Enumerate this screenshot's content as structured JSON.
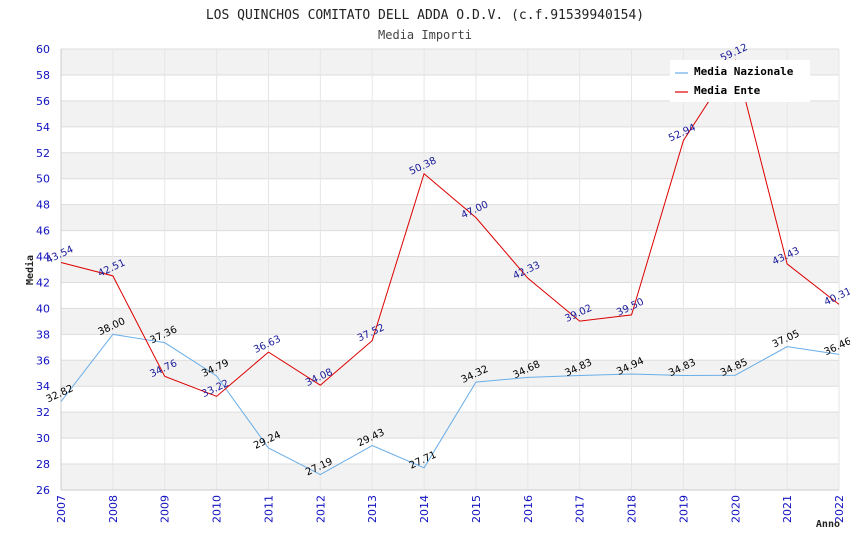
{
  "chart_data": {
    "type": "line",
    "title": "LOS QUINCHOS COMITATO DELL ADDA O.D.V. (c.f.91539940154)",
    "subtitle": "Media Importi",
    "xlabel": "Anno",
    "ylabel": "Media",
    "ylim": [
      26,
      60
    ],
    "yticks": [
      "26",
      "28",
      "30",
      "32",
      "34",
      "36",
      "38",
      "40",
      "42",
      "44",
      "46",
      "48",
      "50",
      "52",
      "54",
      "56",
      "58",
      "60"
    ],
    "categories": [
      "2007",
      "2008",
      "2009",
      "2010",
      "2011",
      "2012",
      "2013",
      "2014",
      "2015",
      "2016",
      "2017",
      "2018",
      "2019",
      "2020",
      "2021",
      "2022"
    ],
    "legend_position": "top-right",
    "series": [
      {
        "name": "Media Nazionale",
        "color": "#6aaee8",
        "values": [
          32.82,
          38.0,
          37.36,
          34.79,
          29.24,
          27.19,
          29.43,
          27.71,
          34.32,
          34.68,
          34.83,
          34.94,
          34.83,
          34.85,
          37.05,
          36.46
        ],
        "labels": [
          "32.82",
          "38.00",
          "37.36",
          "34.79",
          "29.24",
          "27.19",
          "29.43",
          "27.71",
          "34.32",
          "34.68",
          "34.83",
          "34.94",
          "34.83",
          "34.85",
          "37.05",
          "36.46"
        ]
      },
      {
        "name": "Media Ente",
        "color": "#dd0000",
        "values": [
          43.54,
          42.51,
          34.76,
          33.22,
          36.63,
          34.08,
          37.52,
          50.38,
          47.0,
          42.33,
          39.02,
          39.5,
          52.94,
          59.12,
          43.43,
          40.31
        ],
        "labels": [
          "43.54",
          "42.51",
          "34.76",
          "33.22",
          "36.63",
          "34.08",
          "37.52",
          "50.38",
          "47.00",
          "42.33",
          "39.02",
          "39.50",
          "52.94",
          "59.12",
          "43.43",
          "40.31"
        ]
      }
    ]
  }
}
